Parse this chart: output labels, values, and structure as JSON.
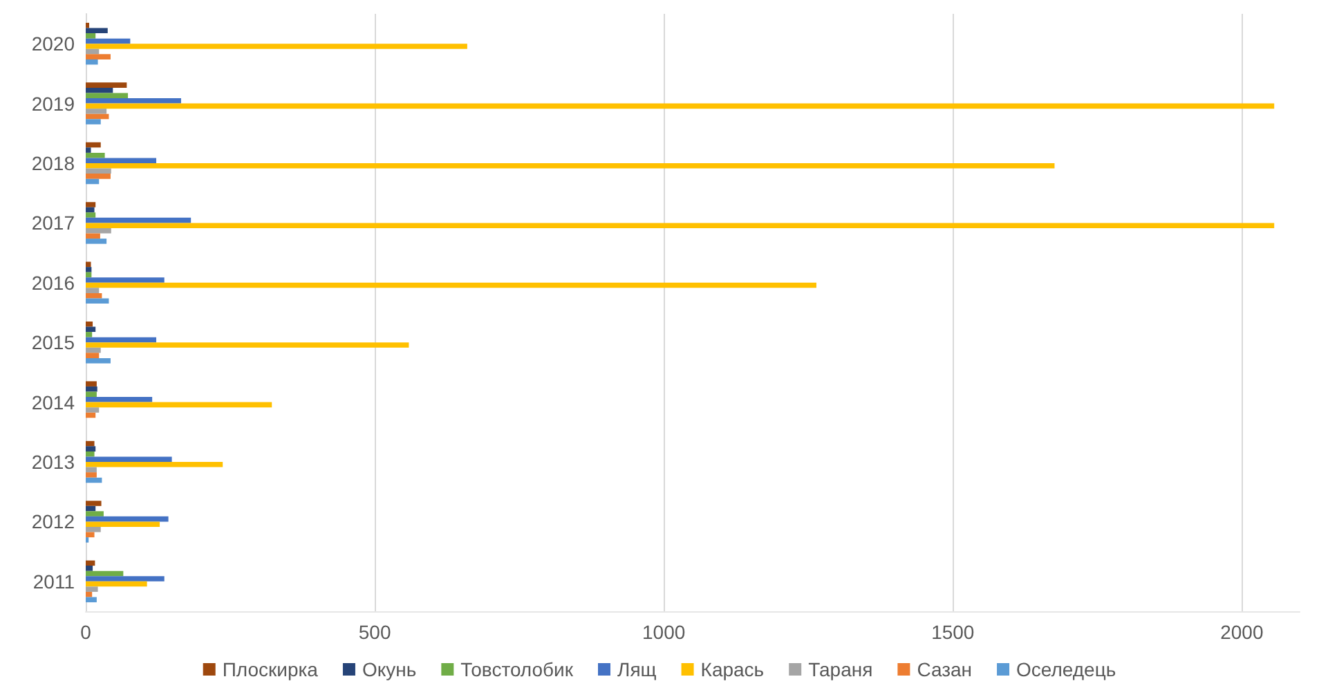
{
  "chart_data": {
    "type": "bar",
    "orientation": "horizontal",
    "categories": [
      "2020",
      "2019",
      "2018",
      "2017",
      "2016",
      "2015",
      "2014",
      "2013",
      "2012",
      "2011"
    ],
    "series": [
      {
        "name": "Плоскирка",
        "color": "#9e480e",
        "values": [
          6,
          71,
          26,
          17,
          9,
          12,
          19,
          15,
          27,
          16
        ]
      },
      {
        "name": "Окунь",
        "color": "#264478",
        "values": [
          38,
          47,
          9,
          15,
          10,
          17,
          20,
          17,
          17,
          12
        ]
      },
      {
        "name": "Товстолобик",
        "color": "#70ad47",
        "values": [
          17,
          73,
          33,
          17,
          10,
          11,
          19,
          15,
          31,
          65
        ]
      },
      {
        "name": "Лящ",
        "color": "#4472c4",
        "values": [
          77,
          165,
          122,
          182,
          136,
          122,
          115,
          149,
          143,
          136
        ]
      },
      {
        "name": "Карась",
        "color": "#ffc000",
        "values": [
          660,
          2056,
          1676,
          2056,
          1264,
          559,
          322,
          237,
          128,
          106
        ]
      },
      {
        "name": "Тараня",
        "color": "#a5a5a5",
        "values": [
          23,
          36,
          44,
          44,
          23,
          26,
          23,
          19,
          26,
          21
        ]
      },
      {
        "name": "Сазан",
        "color": "#ed7d31",
        "values": [
          43,
          40,
          43,
          25,
          28,
          23,
          17,
          19,
          15,
          11
        ]
      },
      {
        "name": "Оселедець",
        "color": "#5b9bd5",
        "values": [
          21,
          26,
          23,
          36,
          40,
          43,
          0,
          28,
          5,
          19
        ]
      }
    ],
    "xlim": [
      0,
      2100
    ],
    "xticks": [
      0,
      500,
      1000,
      1500,
      2000
    ],
    "grid": "x",
    "legend": "bottom"
  }
}
